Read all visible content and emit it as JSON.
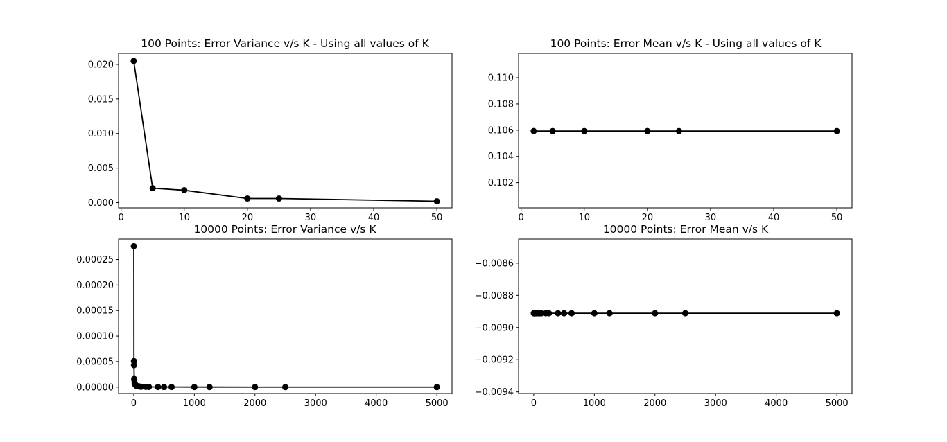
{
  "figure": {
    "background": "#ffffff"
  },
  "chart_data": [
    {
      "type": "line",
      "title": "100 Points: Error Variance v/s K - Using all values of K",
      "xlabel": "",
      "ylabel": "",
      "xlim": [
        -0.4,
        52.4
      ],
      "ylim": [
        -0.00075,
        0.0216
      ],
      "xticks": [
        0,
        10,
        20,
        30,
        40,
        50
      ],
      "xtick_labels": [
        "0",
        "10",
        "20",
        "30",
        "40",
        "50"
      ],
      "yticks": [
        0.0,
        0.005,
        0.01,
        0.015,
        0.02
      ],
      "ytick_labels": [
        "0.000",
        "0.005",
        "0.010",
        "0.015",
        "0.020"
      ],
      "grid": false,
      "series": [
        {
          "color": "#000000",
          "marker": "circle",
          "x": [
            2,
            5,
            10,
            20,
            25,
            50
          ],
          "values": [
            0.0205,
            0.0021,
            0.0018,
            0.0006,
            0.0006,
            0.0002
          ]
        }
      ]
    },
    {
      "type": "line",
      "title": "100 Points: Error Mean v/s K - Using all values of K",
      "xlabel": "",
      "ylabel": "",
      "xlim": [
        -0.4,
        52.4
      ],
      "ylim": [
        0.10008,
        0.11185
      ],
      "xticks": [
        0,
        10,
        20,
        30,
        40,
        50
      ],
      "xtick_labels": [
        "0",
        "10",
        "20",
        "30",
        "40",
        "50"
      ],
      "yticks": [
        0.102,
        0.104,
        0.106,
        0.108,
        0.11
      ],
      "ytick_labels": [
        "0.102",
        "0.104",
        "0.106",
        "0.108",
        "0.110"
      ],
      "grid": false,
      "series": [
        {
          "color": "#000000",
          "marker": "circle",
          "x": [
            2,
            5,
            10,
            20,
            25,
            50
          ],
          "values": [
            0.10593,
            0.10593,
            0.10593,
            0.10593,
            0.10593,
            0.10593
          ]
        }
      ]
    },
    {
      "type": "line",
      "title": "10000 Points: Error Variance v/s K",
      "xlabel": "",
      "ylabel": "",
      "xlim": [
        -250,
        5250
      ],
      "ylim": [
        -1.25e-05,
        0.00029
      ],
      "xticks": [
        0,
        1000,
        2000,
        3000,
        4000,
        5000
      ],
      "xtick_labels": [
        "0",
        "1000",
        "2000",
        "3000",
        "4000",
        "5000"
      ],
      "yticks": [
        0.0,
        5e-05,
        0.0001,
        0.00015,
        0.0002,
        0.00025
      ],
      "ytick_labels": [
        "0.00000",
        "0.00005",
        "0.00010",
        "0.00015",
        "0.00020",
        "0.00025"
      ],
      "grid": false,
      "series": [
        {
          "color": "#000000",
          "marker": "circle",
          "x": [
            2,
            4,
            5,
            8,
            10,
            16,
            20,
            25,
            40,
            50,
            80,
            100,
            125,
            200,
            250,
            400,
            500,
            625,
            1000,
            1250,
            2000,
            2500,
            5000
          ],
          "values": [
            0.000276,
            5.1e-05,
            4.3e-05,
            1.6e-05,
            1.4e-05,
            8e-06,
            6e-06,
            5e-06,
            3e-06,
            2e-06,
            1.5e-06,
            1e-06,
            8e-07,
            5e-07,
            4e-07,
            3e-07,
            2e-07,
            2e-07,
            1e-07,
            1e-07,
            5e-08,
            4e-08,
            2e-08
          ]
        }
      ]
    },
    {
      "type": "line",
      "title": "10000 Points: Error Mean v/s K",
      "xlabel": "",
      "ylabel": "",
      "xlim": [
        -250,
        5250
      ],
      "ylim": [
        -0.00941,
        -0.00845
      ],
      "xticks": [
        0,
        1000,
        2000,
        3000,
        4000,
        5000
      ],
      "xtick_labels": [
        "0",
        "1000",
        "2000",
        "3000",
        "4000",
        "5000"
      ],
      "yticks": [
        -0.0094,
        -0.0092,
        -0.009,
        -0.0088,
        -0.0086
      ],
      "ytick_labels": [
        "−0.0094",
        "−0.0092",
        "−0.0090",
        "−0.0088",
        "−0.0086"
      ],
      "grid": false,
      "series": [
        {
          "color": "#000000",
          "marker": "circle",
          "x": [
            2,
            4,
            5,
            8,
            10,
            16,
            20,
            25,
            40,
            50,
            80,
            100,
            125,
            200,
            250,
            400,
            500,
            625,
            1000,
            1250,
            2000,
            2500,
            5000
          ],
          "values": [
            -0.008911,
            -0.008911,
            -0.008911,
            -0.008911,
            -0.008911,
            -0.008911,
            -0.008911,
            -0.008911,
            -0.008911,
            -0.008911,
            -0.008911,
            -0.008911,
            -0.008911,
            -0.008911,
            -0.008911,
            -0.008911,
            -0.008911,
            -0.008911,
            -0.008911,
            -0.008911,
            -0.008911,
            -0.008911,
            -0.008911
          ]
        }
      ]
    }
  ]
}
